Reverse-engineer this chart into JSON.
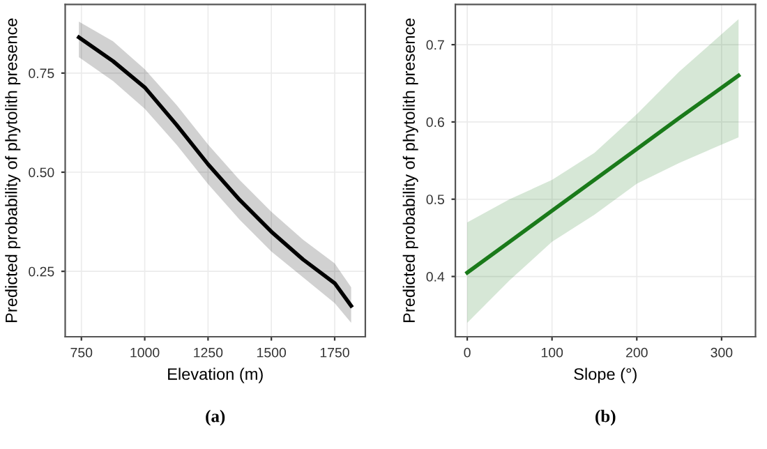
{
  "chart_data": [
    {
      "type": "line",
      "xlabel": "Elevation (m)",
      "ylabel": "Predicted probability of phytolith presence",
      "annotations": [
        "(a)"
      ],
      "xlim": [
        686,
        1871
      ],
      "ylim": [
        0.085,
        0.923
      ],
      "xticks": [
        750,
        1000,
        1250,
        1500,
        1750
      ],
      "yticks": [
        0.25,
        {
          "value": 0.5,
          "label": "0.50"
        },
        0.75
      ],
      "grid": true,
      "legend": false,
      "series": [
        {
          "color": "#000000",
          "x": [
            740,
            875,
            1000,
            1125,
            1250,
            1375,
            1500,
            1625,
            1750,
            1815
          ],
          "values": [
            0.84,
            0.78,
            0.714,
            0.62,
            0.52,
            0.43,
            0.35,
            0.28,
            0.22,
            0.163
          ],
          "lower": [
            0.79,
            0.73,
            0.66,
            0.57,
            0.47,
            0.38,
            0.3,
            0.235,
            0.17,
            0.12
          ],
          "upper": [
            0.88,
            0.83,
            0.76,
            0.67,
            0.57,
            0.48,
            0.4,
            0.33,
            0.27,
            0.21
          ]
        }
      ]
    },
    {
      "type": "line",
      "xlabel": "Slope (°)",
      "ylabel": "Predicted probability of phytolith presence",
      "annotations": [
        "(b)"
      ],
      "xlim": [
        -14,
        340
      ],
      "ylim": [
        0.322,
        0.752
      ],
      "xticks": [
        0,
        100,
        200,
        300
      ],
      "yticks": [
        0.4,
        0.5,
        0.6,
        0.7
      ],
      "grid": true,
      "legend": false,
      "series": [
        {
          "color": "#1a7a1a",
          "x": [
            0,
            50,
            100,
            150,
            200,
            250,
            320
          ],
          "values": [
            0.405,
            0.445,
            0.485,
            0.525,
            0.565,
            0.605,
            0.66
          ],
          "lower": [
            0.34,
            0.395,
            0.445,
            0.48,
            0.52,
            0.547,
            0.58
          ],
          "upper": [
            0.47,
            0.5,
            0.525,
            0.56,
            0.61,
            0.665,
            0.733
          ]
        }
      ]
    }
  ]
}
